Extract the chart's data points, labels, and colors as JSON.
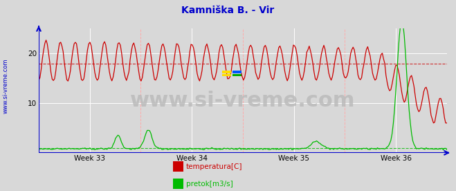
{
  "title": "Kamniška B. - Vir",
  "title_color": "#0000cc",
  "title_fontsize": 10,
  "bg_color": "#d8d8d8",
  "plot_bg_color": "#d8d8d8",
  "grid_color": "#ffffff",
  "axis_color": "#0000cc",
  "xlim": [
    0,
    336
  ],
  "ylim": [
    0,
    25
  ],
  "y_ticks": [
    10,
    20
  ],
  "week_labels": [
    "Week 33",
    "Week 34",
    "Week 35",
    "Week 36"
  ],
  "temp_avg": 18.0,
  "temp_color": "#cc0000",
  "flow_color": "#00bb00",
  "flow_avg": 1.0,
  "watermark": "www.si-vreme.com",
  "watermark_color": "#bbbbbb",
  "watermark_fontsize": 22,
  "sidebar_text": "www.si-vreme.com",
  "sidebar_color": "#0000cc",
  "sidebar_fontsize": 6,
  "legend_temp": "temperatura[C]",
  "legend_flow": "pretok[m3/s]"
}
